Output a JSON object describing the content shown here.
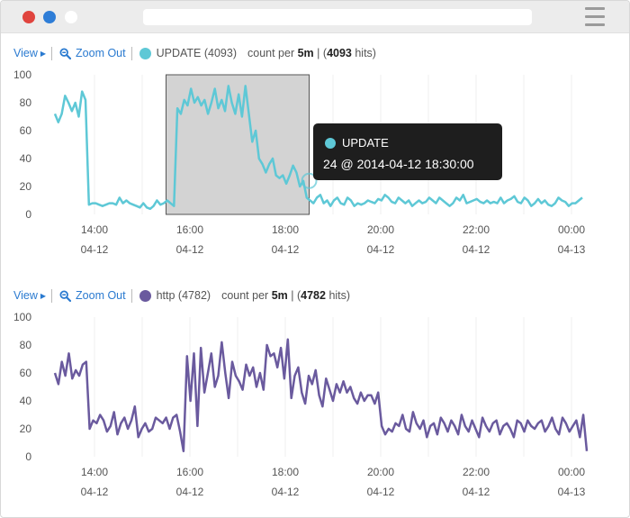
{
  "colors": {
    "series1": "#5ec8d6",
    "series2": "#6a5a9e",
    "link": "#2a7ad0",
    "tooltip_bg": "#1e1e1e",
    "selection": "#d3d3d3"
  },
  "window": {
    "icons": [
      "close-dot",
      "minimize-dot",
      "maximize-dot",
      "menu-icon"
    ]
  },
  "panel1": {
    "view_label": "View",
    "zoom_label": "Zoom Out",
    "legend_label": "UPDATE (4093)",
    "count_prefix": "count per",
    "interval": "5m",
    "hits_sep": "| (",
    "hits": "4093",
    "hits_suffix": "hits)"
  },
  "panel2": {
    "view_label": "View",
    "zoom_label": "Zoom Out",
    "legend_label": "http (4782)",
    "count_prefix": "count per",
    "interval": "5m",
    "hits_sep": "| (",
    "hits": "4782",
    "hits_suffix": "hits)"
  },
  "tooltip": {
    "series": "UPDATE",
    "text": "24 @ 2014-04-12 18:30:00"
  },
  "chart_data": [
    {
      "type": "line",
      "title": "",
      "series": [
        {
          "name": "UPDATE",
          "color": "#5ec8d6",
          "values": [
            72,
            66,
            72,
            85,
            80,
            74,
            80,
            70,
            88,
            82,
            7,
            8,
            8,
            7,
            6,
            7,
            8,
            8,
            7,
            12,
            8,
            10,
            8,
            7,
            6,
            5,
            8,
            5,
            4,
            6,
            10,
            7,
            8,
            10,
            8,
            6,
            76,
            72,
            82,
            78,
            90,
            80,
            84,
            78,
            82,
            72,
            80,
            90,
            76,
            82,
            74,
            92,
            80,
            72,
            86,
            70,
            92,
            72,
            52,
            60,
            40,
            36,
            30,
            36,
            40,
            28,
            26,
            28,
            22,
            28,
            35,
            30,
            20,
            24,
            12,
            10,
            8,
            12,
            14,
            8,
            10,
            6,
            10,
            12,
            8,
            7,
            12,
            10,
            6,
            8,
            7,
            8,
            10,
            9,
            8,
            11,
            10,
            14,
            12,
            9,
            8,
            12,
            10,
            8,
            10,
            6,
            8,
            10,
            8,
            9,
            12,
            10,
            8,
            12,
            10,
            8,
            6,
            8,
            12,
            10,
            14,
            8,
            9,
            10,
            11,
            9,
            8,
            10,
            8,
            9,
            8,
            12,
            8,
            10,
            11,
            13,
            9,
            8,
            12,
            10,
            6,
            8,
            11,
            8,
            10,
            7,
            6,
            8,
            12,
            10,
            9,
            6,
            8,
            8,
            10,
            12
          ]
        }
      ],
      "x_tick_labels": [
        [
          "14:00",
          "04-12"
        ],
        [
          "16:00",
          "04-12"
        ],
        [
          "18:00",
          "04-12"
        ],
        [
          "20:00",
          "04-12"
        ],
        [
          "22:00",
          "04-12"
        ],
        [
          "00:00",
          "04-13"
        ]
      ],
      "ylim": [
        0,
        100
      ],
      "y_ticks": [
        0,
        20,
        40,
        60,
        80,
        100
      ],
      "grid": true,
      "selection_hours": [
        15.5,
        18.5
      ],
      "hover_hour": 18.5,
      "hover_value": 24
    },
    {
      "type": "line",
      "title": "",
      "series": [
        {
          "name": "http",
          "color": "#6a5a9e",
          "values": [
            60,
            52,
            68,
            58,
            74,
            56,
            62,
            58,
            66,
            68,
            20,
            26,
            24,
            30,
            26,
            18,
            22,
            32,
            16,
            24,
            28,
            20,
            26,
            36,
            14,
            20,
            24,
            18,
            20,
            28,
            26,
            24,
            28,
            20,
            28,
            30,
            18,
            4,
            72,
            40,
            74,
            22,
            78,
            46,
            60,
            74,
            50,
            58,
            82,
            60,
            42,
            68,
            58,
            54,
            48,
            66,
            58,
            64,
            50,
            60,
            48,
            80,
            72,
            74,
            64,
            78,
            56,
            84,
            42,
            58,
            64,
            46,
            38,
            58,
            52,
            62,
            44,
            36,
            56,
            48,
            40,
            52,
            46,
            54,
            46,
            50,
            42,
            38,
            46,
            40,
            44,
            44,
            38,
            46,
            22,
            16,
            20,
            18,
            24,
            22,
            30,
            20,
            18,
            32,
            24,
            20,
            26,
            14,
            22,
            24,
            16,
            28,
            24,
            18,
            26,
            22,
            16,
            30,
            22,
            18,
            26,
            20,
            14,
            28,
            22,
            18,
            24,
            26,
            16,
            22,
            24,
            20,
            14,
            26,
            24,
            18,
            26,
            22,
            20,
            24,
            26,
            18,
            22,
            28,
            20,
            16,
            28,
            24,
            18,
            22,
            26,
            14,
            30,
            4
          ]
        }
      ],
      "x_tick_labels": [
        [
          "14:00",
          "04-12"
        ],
        [
          "16:00",
          "04-12"
        ],
        [
          "18:00",
          "04-12"
        ],
        [
          "20:00",
          "04-12"
        ],
        [
          "22:00",
          "04-12"
        ],
        [
          "00:00",
          "04-13"
        ]
      ],
      "ylim": [
        0,
        100
      ],
      "y_ticks": [
        0,
        20,
        40,
        60,
        80,
        100
      ],
      "grid": true
    }
  ]
}
